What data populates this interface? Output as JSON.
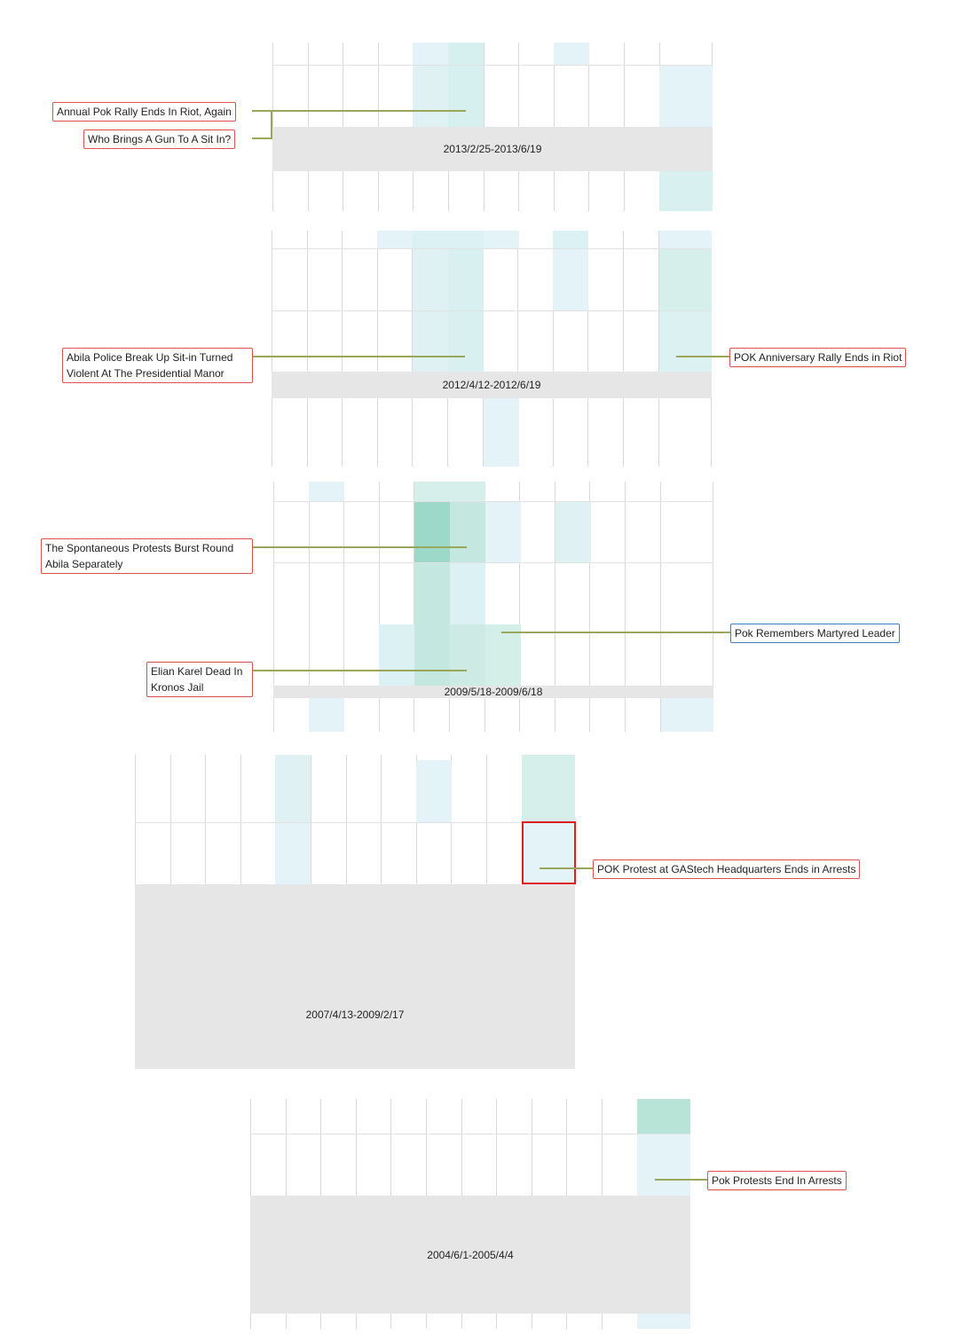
{
  "colors": {
    "grid": "#d9d9d9",
    "band": "#e6e6e6",
    "cell_light": "#e4f3f7",
    "cell_mid": "#d6efef",
    "cell_teal": "#c4e8e0",
    "cell_dark": "#9dd9c9",
    "label_border_red": "#e15050",
    "label_border_blue": "#3c7fc5",
    "leader": "#9aa65a",
    "highlight": "#e01b1b"
  },
  "periods": [
    {
      "range": "2013/2/25-2013/6/19"
    },
    {
      "range": "2012/4/12-2012/6/19"
    },
    {
      "range": "2009/5/18-2009/6/18"
    },
    {
      "range": "2007/4/13-2009/2/17"
    },
    {
      "range": "2004/6/1-2005/4/4"
    }
  ],
  "events": {
    "annual_pok_rally": "Annual Pok Rally Ends In Riot, Again",
    "gun_sit_in": "Who Brings A Gun To A Sit In?",
    "abila_police": "Abila Police Break Up Sit-in Turned Violent At The Presidential Manor",
    "pok_anniversary": "POK Anniversary Rally Ends in Riot",
    "spontaneous_protests": "The Spontaneous Protests Burst Round Abila Separately",
    "pok_remembers": "Pok Remembers Martyred Leader",
    "elian_karel": "Elian Karel Dead In Kronos Jail",
    "gastech_protest": "POK Protest at GAStech Headquarters Ends in Arrests",
    "pok_protests_arrests": "Pok Protests End In Arrests"
  }
}
